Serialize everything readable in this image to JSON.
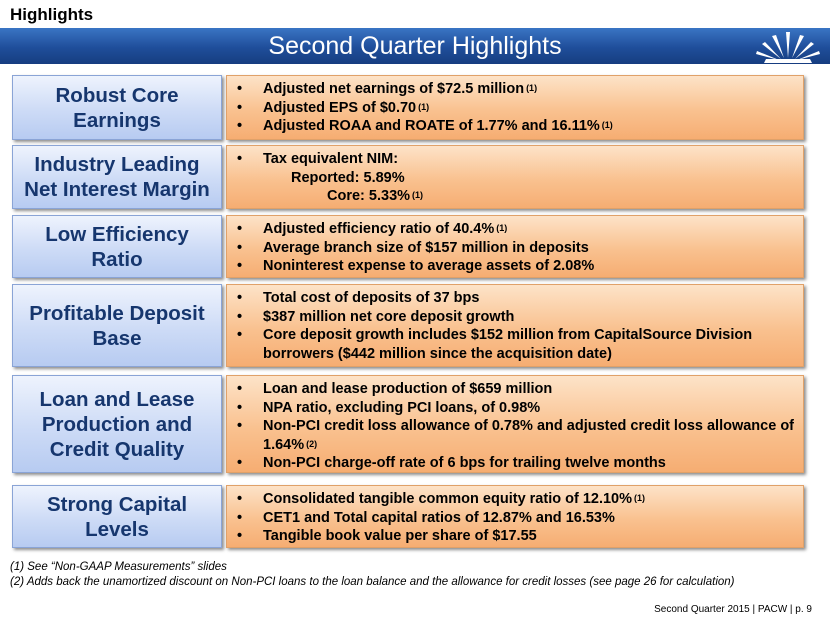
{
  "header": {
    "section": "Highlights",
    "title": "Second Quarter Highlights",
    "logo_icon": "sunburst-logo-icon"
  },
  "rows": [
    {
      "label": [
        "Robust Core",
        "Earnings"
      ],
      "bullets": [
        {
          "text": "Adjusted net earnings of $72.5 million",
          "note": "(1)"
        },
        {
          "text": "Adjusted EPS of $0.70",
          "note": "(1)"
        },
        {
          "text": "Adjusted ROAA and ROATE of 1.77% and 16.11%",
          "note": "(1)"
        }
      ]
    },
    {
      "label": [
        "Industry Leading",
        "Net Interest Margin"
      ],
      "lead": "Tax equivalent NIM:",
      "sub": [
        {
          "name": "Reported:",
          "value": "5.89%",
          "note": ""
        },
        {
          "name": "Core:",
          "value": "5.33%",
          "note": "(1)"
        }
      ]
    },
    {
      "label": [
        "Low Efficiency",
        "Ratio"
      ],
      "bullets": [
        {
          "text": "Adjusted efficiency ratio of 40.4%",
          "note": "(1)"
        },
        {
          "text": "Average branch size of $157 million in deposits",
          "note": ""
        },
        {
          "text": "Noninterest expense to average assets of 2.08%",
          "note": ""
        }
      ]
    },
    {
      "label": [
        "Profitable Deposit",
        "Base"
      ],
      "bullets": [
        {
          "text": "Total cost of deposits of 37 bps",
          "note": ""
        },
        {
          "text": "$387 million net core deposit growth",
          "note": ""
        },
        {
          "text": "Core deposit growth includes $152 million from CapitalSource Division borrowers ($442 million since the acquisition date)",
          "note": ""
        }
      ]
    },
    {
      "label": [
        "Loan and Lease",
        "Production and",
        "Credit Quality"
      ],
      "bullets": [
        {
          "text": "Loan and lease production of $659 million",
          "note": ""
        },
        {
          "text": "NPA ratio, excluding PCI loans, of 0.98%",
          "note": ""
        },
        {
          "text": "Non-PCI credit loss allowance of 0.78% and adjusted credit loss allowance of 1.64%",
          "note": "(2)"
        },
        {
          "text": "Non-PCI charge-off rate of 6 bps for trailing twelve months",
          "note": ""
        }
      ]
    },
    {
      "label": [
        "Strong Capital",
        "Levels"
      ],
      "bullets": [
        {
          "text": "Consolidated tangible common equity ratio of 12.10%",
          "note": "(1)"
        },
        {
          "text": "CET1 and Total capital ratios of 12.87% and 16.53%",
          "note": ""
        },
        {
          "text": "Tangible book value per share of $17.55",
          "note": ""
        }
      ]
    }
  ],
  "footnotes": [
    "(1)  See “Non-GAAP Measurements” slides",
    "(2)  Adds back the unamortized discount on Non-PCI loans to the loan balance and the allowance for credit losses (see page 26 for calculation)"
  ],
  "footer": "Second Quarter 2015 | PACW | p. 9"
}
